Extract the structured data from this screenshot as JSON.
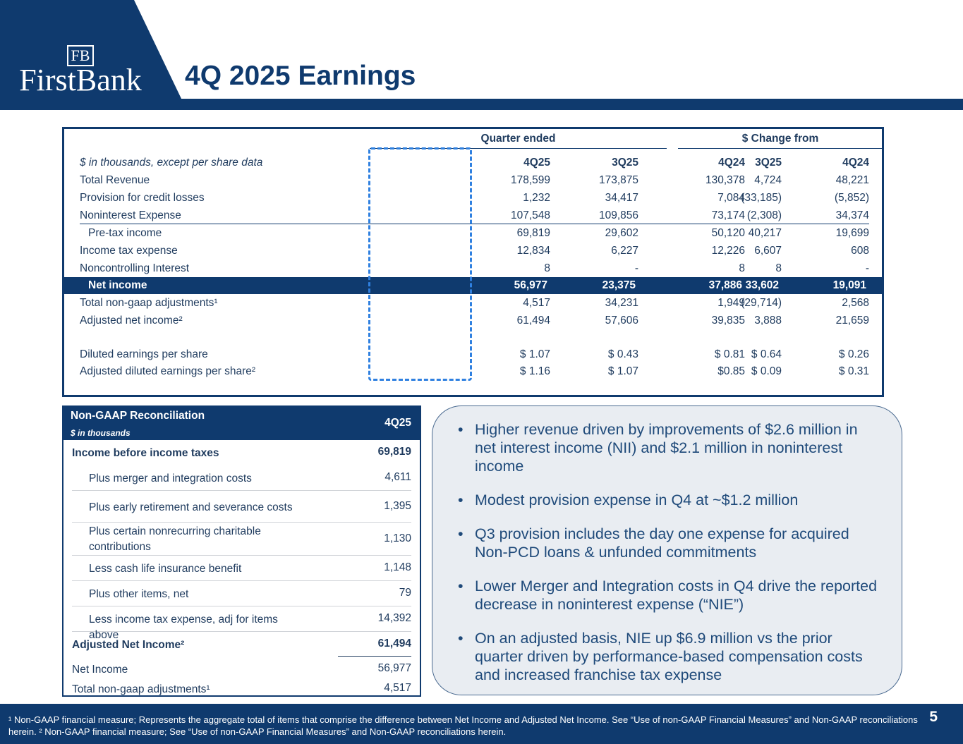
{
  "header": {
    "logo_mark": "FB",
    "logo_name": "FirstBank",
    "title": "4Q 2025 Earnings"
  },
  "main_table": {
    "group_quarter": "Quarter ended",
    "group_change": "$ Change from",
    "unit_label": "$ in thousands, except per share data",
    "columns": [
      "4Q25",
      "3Q25",
      "4Q24",
      "3Q25",
      "4Q24"
    ],
    "rows": [
      {
        "label": "Total Revenue",
        "values": [
          "178,599",
          "173,875",
          "130,378",
          "4,724",
          "48,221"
        ]
      },
      {
        "label": "Provision for credit losses",
        "values": [
          "1,232",
          "34,417",
          "7,084",
          "(33,185)",
          "(5,852)"
        ]
      },
      {
        "label": "Noninterest Expense",
        "values": [
          "107,548",
          "109,856",
          "73,174",
          "(2,308)",
          "34,374"
        ]
      },
      {
        "label": "Pre-tax income",
        "values": [
          "69,819",
          "29,602",
          "50,120",
          "40,217",
          "19,699"
        ]
      },
      {
        "label": "Income tax expense",
        "values": [
          "12,834",
          "6,227",
          "12,226",
          "6,607",
          "608"
        ]
      },
      {
        "label": "Noncontrolling Interest",
        "values": [
          "8",
          "-",
          "8",
          "8",
          "-"
        ]
      },
      {
        "label": "Net income",
        "values": [
          "56,977",
          "23,375",
          "37,886",
          "33,602",
          "19,091"
        ]
      },
      {
        "label": "Total non-gaap adjustments¹",
        "values": [
          "4,517",
          "34,231",
          "1,949",
          "(29,714)",
          "2,568"
        ]
      },
      {
        "label": "Adjusted net income²",
        "values": [
          "61,494",
          "57,606",
          "39,835",
          "3,888",
          "21,659"
        ]
      },
      {
        "label": "Diluted earnings per share",
        "values": [
          "$ 1.07",
          "$ 0.43",
          "$ 0.81",
          "$ 0.64",
          "$ 0.26"
        ]
      },
      {
        "label": "Adjusted diluted earnings per share²",
        "values": [
          "$ 1.16",
          "$ 1.07",
          "$0.85",
          "$ 0.09",
          "$ 0.31"
        ]
      }
    ]
  },
  "recon": {
    "title": "Non-GAAP Reconciliation",
    "subtitle": "$ in thousands",
    "column": "4Q25",
    "rows": [
      {
        "label": "Income before income taxes",
        "value": "69,819"
      },
      {
        "label": "Plus merger and integration costs",
        "value": "4,611"
      },
      {
        "label": "Plus early retirement and severance costs",
        "value": "1,395"
      },
      {
        "label": "Plus certain nonrecurring charitable contributions",
        "value": "1,130"
      },
      {
        "label": "Less cash life insurance benefit",
        "value": "1,148"
      },
      {
        "label": "Plus other items, net",
        "value": "79"
      },
      {
        "label": "Less income tax expense, adj for items above",
        "value": "14,392"
      },
      {
        "label": "Adjusted Net Income²",
        "value": "61,494"
      },
      {
        "label": "Net Income",
        "value": "56,977"
      },
      {
        "label": "Total non-gaap adjustments¹",
        "value": "4,517"
      }
    ]
  },
  "bullets": [
    "Higher revenue driven by improvements of $2.6 million in net interest income (NII) and $2.1 million in noninterest income",
    "Modest provision expense in Q4 at ~$1.2 million",
    "Q3 provision includes the day one expense for acquired Non-PCD loans & unfunded commitments",
    "Lower Merger and Integration costs in Q4 drive the reported decrease in noninterest expense (“NIE”)",
    "On an adjusted basis, NIE up $6.9 million vs the prior quarter driven by performance-based compensation costs and increased franchise tax expense"
  ],
  "footer": {
    "note": "¹ Non-GAAP financial measure; Represents the aggregate total of items that comprise the difference between Net Income and Adjusted Net Income. See “Use of non-GAAP Financial Measures” and Non-GAAP reconciliations herein. ² Non-GAAP financial measure; See “Use of non-GAAP Financial Measures” and Non-GAAP reconciliations herein.",
    "page": "5"
  },
  "colors": {
    "navy": "#0f3a6e",
    "highlight": "#2f80e0"
  }
}
